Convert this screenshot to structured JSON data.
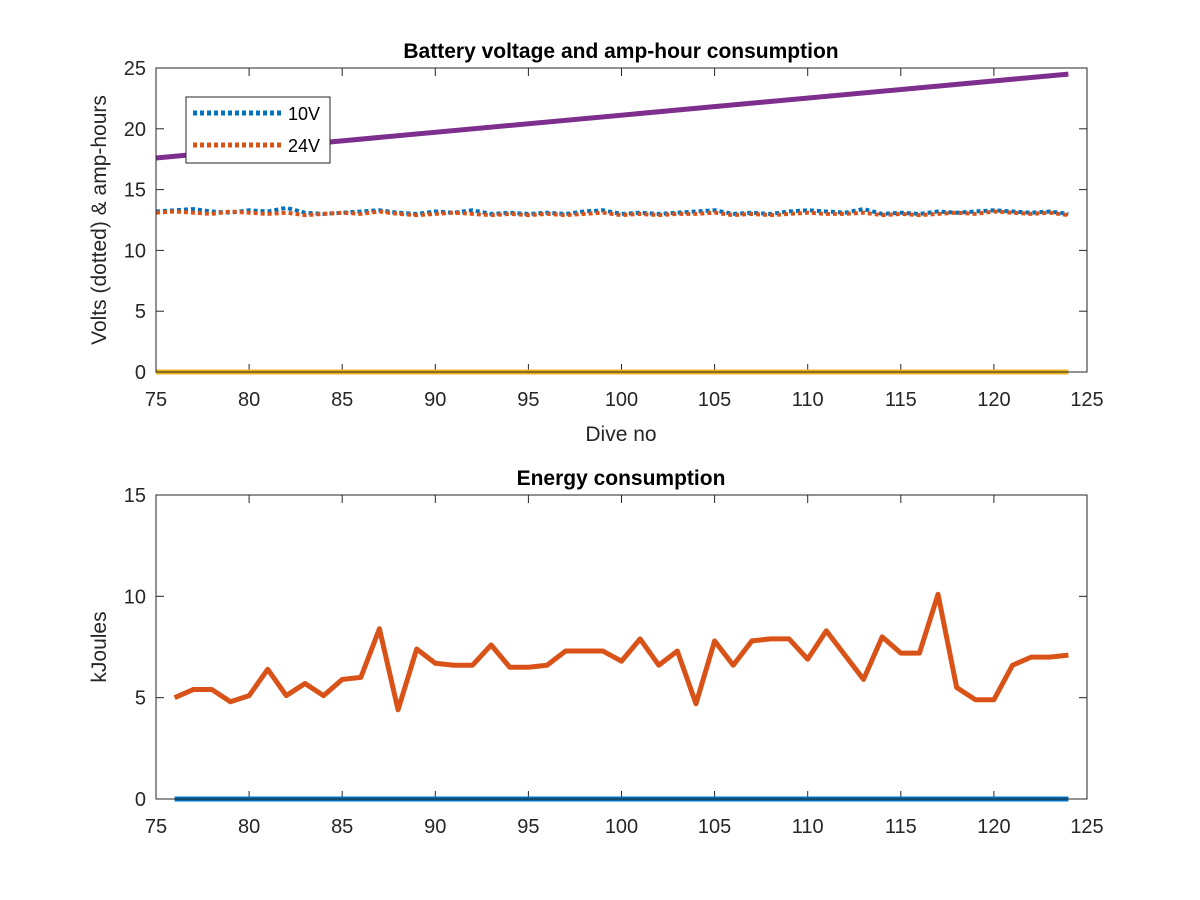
{
  "chart_data": [
    {
      "type": "line",
      "title": "Battery voltage and amp-hour consumption",
      "xlabel": "Dive no",
      "ylabel": "Volts (dotted) & amp-hours",
      "xlim": [
        75,
        125
      ],
      "ylim": [
        0,
        25
      ],
      "xticks": [
        75,
        80,
        85,
        90,
        95,
        100,
        105,
        110,
        115,
        120,
        125
      ],
      "yticks": [
        0,
        5,
        10,
        15,
        20,
        25
      ],
      "legend": {
        "placement": "top-left",
        "entries": [
          "10V",
          "24V"
        ]
      },
      "series": [
        {
          "name": "10V",
          "style": "dotted",
          "color": "#0072BD",
          "x": [
            75,
            76,
            77,
            78,
            79,
            80,
            81,
            82,
            83,
            84,
            85,
            86,
            87,
            88,
            89,
            90,
            91,
            92,
            93,
            94,
            95,
            96,
            97,
            98,
            99,
            100,
            101,
            102,
            103,
            104,
            105,
            106,
            107,
            108,
            109,
            110,
            111,
            112,
            113,
            114,
            115,
            116,
            117,
            118,
            119,
            120,
            121,
            122,
            123,
            124
          ],
          "y": [
            13.2,
            13.3,
            13.4,
            13.2,
            13.1,
            13.3,
            13.2,
            13.5,
            13.1,
            13.0,
            13.1,
            13.2,
            13.3,
            13.1,
            13.0,
            13.2,
            13.1,
            13.3,
            13.0,
            13.1,
            13.0,
            13.1,
            13.0,
            13.2,
            13.3,
            13.0,
            13.1,
            13.0,
            13.1,
            13.2,
            13.3,
            13.0,
            13.1,
            13.0,
            13.2,
            13.3,
            13.2,
            13.1,
            13.4,
            13.0,
            13.1,
            13.0,
            13.2,
            13.1,
            13.2,
            13.3,
            13.2,
            13.1,
            13.2,
            13.0
          ]
        },
        {
          "name": "24V",
          "style": "dotted",
          "color": "#D95319",
          "x": [
            75,
            76,
            77,
            78,
            79,
            80,
            81,
            82,
            83,
            84,
            85,
            86,
            87,
            88,
            89,
            90,
            91,
            92,
            93,
            94,
            95,
            96,
            97,
            98,
            99,
            100,
            101,
            102,
            103,
            104,
            105,
            106,
            107,
            108,
            109,
            110,
            111,
            112,
            113,
            114,
            115,
            116,
            117,
            118,
            119,
            120,
            121,
            122,
            123,
            124
          ],
          "y": [
            13.1,
            13.2,
            13.1,
            13.0,
            13.2,
            13.1,
            13.0,
            13.1,
            12.9,
            13.0,
            13.1,
            13.0,
            13.2,
            13.0,
            12.9,
            13.0,
            13.1,
            13.0,
            12.9,
            13.0,
            12.9,
            13.0,
            12.9,
            13.0,
            13.1,
            12.9,
            13.0,
            12.9,
            13.0,
            13.0,
            13.1,
            12.9,
            13.0,
            12.9,
            13.0,
            13.1,
            13.0,
            13.0,
            13.1,
            12.9,
            13.0,
            12.9,
            13.0,
            13.1,
            13.0,
            13.2,
            13.1,
            13.0,
            13.1,
            12.9
          ]
        },
        {
          "style": "solid",
          "color": "#7E2F8E",
          "x": [
            75,
            124
          ],
          "y": [
            17.6,
            24.5
          ]
        },
        {
          "style": "solid",
          "color": "#EDB120",
          "x": [
            75,
            124
          ],
          "y": [
            0,
            0
          ]
        }
      ]
    },
    {
      "type": "line",
      "title": "Energy consumption",
      "xlabel": "",
      "ylabel": "kJoules",
      "xlim": [
        75,
        125
      ],
      "ylim": [
        0,
        15
      ],
      "xticks": [
        75,
        80,
        85,
        90,
        95,
        100,
        105,
        110,
        115,
        120,
        125
      ],
      "yticks": [
        0,
        5,
        10,
        15
      ],
      "series": [
        {
          "style": "solid",
          "color": "#D95319",
          "x": [
            76,
            77,
            78,
            79,
            80,
            81,
            82,
            83,
            84,
            85,
            86,
            87,
            88,
            89,
            90,
            91,
            92,
            93,
            94,
            95,
            96,
            97,
            98,
            99,
            100,
            101,
            102,
            103,
            104,
            105,
            106,
            107,
            108,
            109,
            110,
            111,
            112,
            113,
            114,
            115,
            116,
            117,
            118,
            119,
            120,
            121,
            122,
            123,
            124
          ],
          "y": [
            5.0,
            5.4,
            5.4,
            4.8,
            5.1,
            6.4,
            5.1,
            5.7,
            5.1,
            5.9,
            6.0,
            8.4,
            4.4,
            7.4,
            6.7,
            6.6,
            6.6,
            7.6,
            6.5,
            6.5,
            6.6,
            7.3,
            7.3,
            7.3,
            6.8,
            7.9,
            6.6,
            7.3,
            4.7,
            7.8,
            6.6,
            7.8,
            7.9,
            7.9,
            6.9,
            8.3,
            7.1,
            5.9,
            8.0,
            7.2,
            7.2,
            10.1,
            5.5,
            4.9,
            4.9,
            6.6,
            7.0,
            7.0,
            7.1
          ]
        },
        {
          "style": "solid",
          "color": "#0072BD",
          "x": [
            76,
            124
          ],
          "y": [
            0,
            0
          ]
        }
      ]
    }
  ]
}
